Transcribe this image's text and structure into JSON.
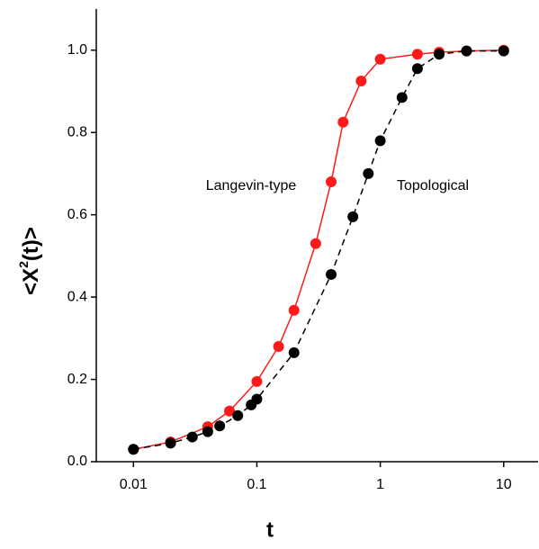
{
  "chart_data": {
    "type": "line",
    "xlabel": "t",
    "ylabel": {
      "base": "<X",
      "sup": "2",
      "rest": "(t)>"
    },
    "xscale": "log",
    "xlim": [
      0.005,
      19
    ],
    "xticks": [
      0.01,
      0.1,
      1,
      10
    ],
    "ylim": [
      0,
      1.1
    ],
    "yticks": [
      {
        "value": 0,
        "label": "0.0"
      },
      {
        "value": 0.2,
        "label": "0.2"
      },
      {
        "value": 0.4,
        "label": "0.4"
      },
      {
        "value": 0.6,
        "label": "0.6"
      },
      {
        "value": 0.8,
        "label": "0.8"
      },
      {
        "value": 1,
        "label": "1.0"
      }
    ],
    "series": [
      {
        "name": "Langevin-type",
        "color": "#ff1a1a",
        "dash": false,
        "x": [
          0.01,
          0.02,
          0.04,
          0.06,
          0.1,
          0.15,
          0.2,
          0.3,
          0.4,
          0.5,
          0.7,
          1,
          2,
          3,
          5,
          10
        ],
        "values": [
          0.03,
          0.048,
          0.085,
          0.123,
          0.195,
          0.28,
          0.368,
          0.53,
          0.68,
          0.825,
          0.925,
          0.978,
          0.99,
          0.995,
          0.998,
          1.0
        ]
      },
      {
        "name": "Topological",
        "color": "#000000",
        "dash": true,
        "x": [
          0.01,
          0.02,
          0.03,
          0.04,
          0.05,
          0.07,
          0.09,
          0.1,
          0.2,
          0.4,
          0.6,
          0.8,
          1,
          1.5,
          2,
          3,
          5,
          10
        ],
        "values": [
          0.03,
          0.045,
          0.06,
          0.073,
          0.087,
          0.112,
          0.138,
          0.152,
          0.265,
          0.455,
          0.595,
          0.7,
          0.78,
          0.885,
          0.955,
          0.99,
          0.998,
          0.998
        ]
      }
    ]
  }
}
